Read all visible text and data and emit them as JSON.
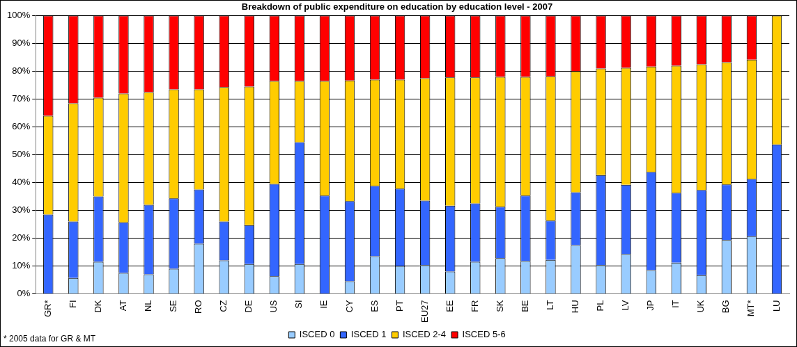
{
  "chart_data": {
    "type": "bar",
    "stacked": true,
    "title": "Breakdown of public expenditure on education by education level - 2007",
    "categories": [
      "GR*",
      "FI",
      "DK",
      "AT",
      "NL",
      "SE",
      "RO",
      "CZ",
      "DE",
      "US",
      "SI",
      "IE",
      "CY",
      "ES",
      "PT",
      "EU27",
      "EE",
      "FR",
      "SK",
      "BE",
      "LT",
      "HU",
      "PL",
      "LV",
      "JP",
      "IT",
      "UK",
      "BG",
      "MT*",
      "LU"
    ],
    "series": [
      {
        "name": "ISCED 0",
        "color": "#99ccff",
        "values": [
          0,
          5.7,
          11.5,
          7.5,
          7,
          9,
          18,
          12,
          10.7,
          6.3,
          10.7,
          0,
          4.5,
          13.5,
          10,
          10.3,
          8,
          11.5,
          12.8,
          11.8,
          12.2,
          17.5,
          10.3,
          14.3,
          8.5,
          11.2,
          6.7,
          19.3,
          20.7,
          0
        ]
      },
      {
        "name": "ISCED 1",
        "color": "#3366ff",
        "values": [
          28.5,
          20.3,
          23.5,
          18.2,
          25,
          25.3,
          19.5,
          14,
          14,
          33.2,
          43.8,
          35.3,
          28.8,
          25.3,
          27.8,
          23.2,
          23.7,
          21,
          18.5,
          23.5,
          14.1,
          19,
          32.4,
          24.9,
          35.3,
          25.1,
          30.6,
          20,
          20.6,
          53.7
        ]
      },
      {
        "name": "ISCED 2-4",
        "color": "#ffcc00",
        "values": [
          35.5,
          42.5,
          35.5,
          46.3,
          40.5,
          39.2,
          36,
          48.3,
          49.8,
          37,
          22,
          41.2,
          43.4,
          38.2,
          39.2,
          44,
          46.1,
          45.3,
          46.7,
          42.7,
          51.9,
          43.5,
          38.3,
          42.1,
          37.9,
          45.7,
          45.2,
          44,
          42.9,
          46.3
        ]
      },
      {
        "name": "ISCED 5-6",
        "color": "#ff0000",
        "values": [
          36,
          31.5,
          29.5,
          28,
          27.5,
          26.5,
          26.5,
          25.7,
          25.5,
          23.5,
          23.5,
          23.5,
          23.3,
          23,
          23,
          22.5,
          22.2,
          22.2,
          22,
          22,
          21.8,
          20,
          19,
          18.7,
          18.3,
          18,
          17.5,
          16.7,
          15.8,
          0
        ]
      }
    ],
    "ylim": [
      0,
      100
    ],
    "yticks": [
      {
        "value": 0,
        "label": "0%"
      },
      {
        "value": 10,
        "label": "10%"
      },
      {
        "value": 20,
        "label": "20%"
      },
      {
        "value": 30,
        "label": "30%"
      },
      {
        "value": 40,
        "label": "40%"
      },
      {
        "value": 50,
        "label": "50%"
      },
      {
        "value": 60,
        "label": "60%"
      },
      {
        "value": 70,
        "label": "70%"
      },
      {
        "value": 80,
        "label": "80%"
      },
      {
        "value": 90,
        "label": "90%"
      },
      {
        "value": 100,
        "label": "100%"
      }
    ],
    "grid": "y",
    "legend": "bottom",
    "annotations": [
      "* 2005 data for GR & MT"
    ]
  }
}
